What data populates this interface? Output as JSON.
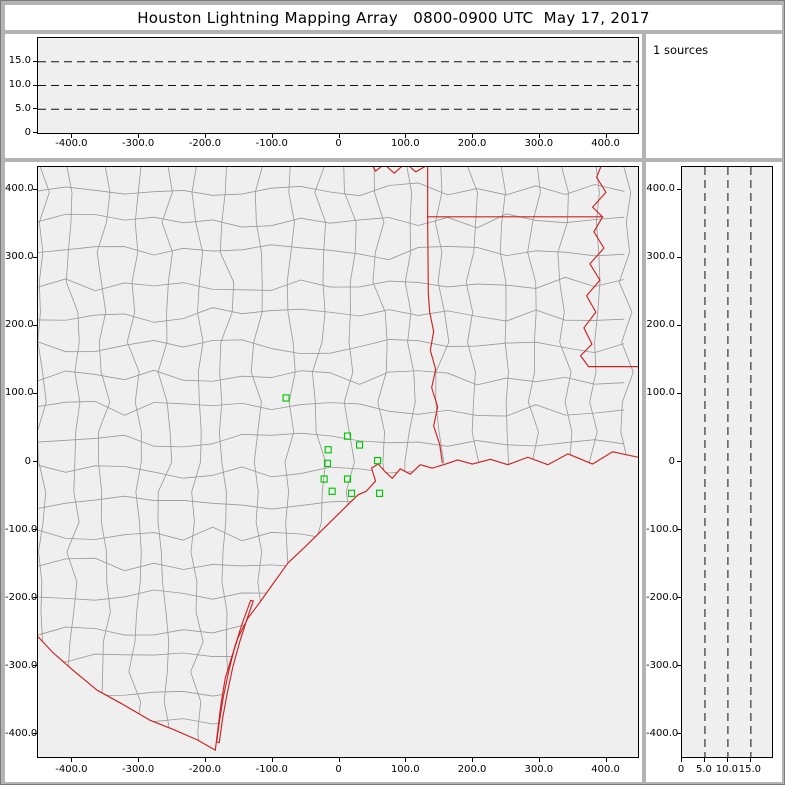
{
  "title": "Houston Lightning Mapping Array   0800-0900 UTC  May 17, 2017",
  "sources_label": "1 sources",
  "sources_count": 1,
  "colors": {
    "frame": "#b3b3b3",
    "plot_bg": "#efefef",
    "state_border": "#cc2222",
    "county_border": "#9a9a9a",
    "station": "#00c800",
    "dashed_grid": "#111111"
  },
  "chart_data": [
    {
      "id": "altitude-vs-east-west",
      "type": "scatter",
      "title": "",
      "xlim": [
        -451.5,
        447
      ],
      "ylim": [
        0,
        20
      ],
      "xtick_values": [
        -400,
        -300,
        -200,
        -100,
        0,
        100,
        200,
        300,
        400
      ],
      "xtick_labels": [
        "-400.0",
        "-300.0",
        "-200.0",
        "-100.0",
        "0",
        "100.0",
        "200.0",
        "300.0",
        "400.0"
      ],
      "ytick_values": [
        15,
        10,
        5,
        0
      ],
      "ytick_labels": [
        "15.0",
        "10.0",
        "5.0",
        "0"
      ],
      "gridlines": {
        "y": [
          5,
          10,
          15
        ],
        "style": "dashed"
      },
      "points": []
    },
    {
      "id": "plan-view-map",
      "type": "scatter",
      "title": "",
      "xlim": [
        -451.5,
        447
      ],
      "ylim": [
        -433,
        433
      ],
      "xtick_values": [
        -400,
        -300,
        -200,
        -100,
        0,
        100,
        200,
        300,
        400
      ],
      "xtick_labels": [
        "-400.0",
        "-300.0",
        "-200.0",
        "-100.0",
        "0",
        "100.0",
        "200.0",
        "300.0",
        "400.0"
      ],
      "ytick_values": [
        400,
        300,
        200,
        100,
        0,
        -100,
        -200,
        -300,
        -400
      ],
      "ytick_labels": [
        "400.0",
        "300.0",
        "200.0",
        "100.0",
        "0",
        "-100.0",
        "-200.0",
        "-300.0",
        "-400.0"
      ],
      "series": [
        {
          "name": "LMA stations",
          "marker": "green-open-square",
          "points": [
            [
              -80,
              94
            ],
            [
              12,
              38
            ],
            [
              -17,
              18
            ],
            [
              30,
              25
            ],
            [
              -18,
              -2
            ],
            [
              57,
              2
            ],
            [
              -23,
              -25
            ],
            [
              12,
              -25
            ],
            [
              -11,
              -43
            ],
            [
              18,
              -46
            ],
            [
              60,
              -46
            ]
          ]
        }
      ],
      "overlays": "county boundaries (gray), state borders and coastline (red)"
    },
    {
      "id": "altitude-vs-north-south",
      "type": "scatter",
      "title": "",
      "xlim": [
        0,
        19.6
      ],
      "ylim": [
        -433,
        433
      ],
      "xtick_values": [
        0,
        5,
        10,
        15
      ],
      "xtick_labels": [
        "0",
        "5.0",
        "10.0",
        "15.0"
      ],
      "ytick_values": [
        400,
        300,
        200,
        100,
        0,
        -100,
        -200,
        -300,
        -400
      ],
      "ytick_labels": [
        "400.0",
        "300.0",
        "200.0",
        "100.0",
        "0",
        "-100.0",
        "-200.0",
        "-300.0",
        "-400.0"
      ],
      "gridlines": {
        "x": [
          5,
          10,
          15
        ],
        "style": "dashed"
      },
      "points": []
    }
  ],
  "map_overlays": {
    "borders": {
      "coastline": [
        [
          447,
          7
        ],
        [
          409,
          15
        ],
        [
          379,
          -3
        ],
        [
          342,
          12
        ],
        [
          312,
          -4
        ],
        [
          282,
          7
        ],
        [
          252,
          -4
        ],
        [
          226,
          4
        ],
        [
          199,
          -3
        ],
        [
          177,
          3
        ],
        [
          159,
          -3
        ],
        [
          139,
          -9
        ],
        [
          121,
          -4
        ],
        [
          106,
          -18
        ],
        [
          91,
          -10
        ],
        [
          79,
          -24
        ],
        [
          69,
          -15
        ],
        [
          58,
          -3
        ],
        [
          48,
          -9
        ],
        [
          54,
          -28
        ],
        [
          40,
          -43
        ],
        [
          28,
          -48
        ],
        [
          7,
          -68
        ],
        [
          -23,
          -97
        ],
        [
          -53,
          -126
        ],
        [
          -77,
          -148
        ],
        [
          -99,
          -178
        ],
        [
          -120,
          -207
        ],
        [
          -137,
          -229
        ],
        [
          -152,
          -258
        ],
        [
          -162,
          -288
        ],
        [
          -171,
          -317
        ],
        [
          -177,
          -352
        ],
        [
          -182,
          -391
        ],
        [
          -186,
          -423
        ]
      ],
      "rio_grande": [
        [
          -186,
          -423
        ],
        [
          -213,
          -408
        ],
        [
          -248,
          -393
        ],
        [
          -284,
          -379
        ],
        [
          -326,
          -355
        ],
        [
          -363,
          -335
        ],
        [
          -400,
          -305
        ],
        [
          -430,
          -279
        ],
        [
          -451,
          -257
        ]
      ],
      "tx_la_border": [
        [
          154,
          -1
        ],
        [
          150,
          26
        ],
        [
          141,
          53
        ],
        [
          147,
          81
        ],
        [
          138,
          109
        ],
        [
          144,
          136
        ],
        [
          136,
          164
        ],
        [
          141,
          192
        ],
        [
          135,
          220
        ],
        [
          133,
          248
        ],
        [
          132,
          360
        ],
        [
          132,
          440
        ]
      ],
      "ar_la_33n": [
        [
          132,
          360
        ],
        [
          394,
          360
        ]
      ],
      "mississippi_river": [
        [
          394,
          440
        ],
        [
          385,
          418
        ],
        [
          399,
          396
        ],
        [
          379,
          374
        ],
        [
          394,
          360
        ],
        [
          381,
          338
        ],
        [
          396,
          314
        ],
        [
          375,
          291
        ],
        [
          390,
          267
        ],
        [
          370,
          244
        ],
        [
          384,
          220
        ],
        [
          366,
          197
        ],
        [
          378,
          173
        ],
        [
          361,
          156
        ],
        [
          373,
          140
        ]
      ],
      "la_ms_31n": [
        [
          373,
          140
        ],
        [
          447,
          140
        ]
      ],
      "red_river": [
        [
          132,
          436
        ],
        [
          114,
          426
        ],
        [
          99,
          439
        ],
        [
          82,
          424
        ],
        [
          67,
          437
        ],
        [
          54,
          427
        ],
        [
          45,
          443
        ]
      ],
      "padre_island": [
        [
          -133,
          -203
        ],
        [
          -145,
          -235
        ],
        [
          -157,
          -272
        ],
        [
          -166,
          -308
        ],
        [
          -174,
          -345
        ],
        [
          -180,
          -382
        ],
        [
          -184,
          -411
        ],
        [
          -180,
          -412
        ],
        [
          -175,
          -376
        ],
        [
          -168,
          -339
        ],
        [
          -160,
          -302
        ],
        [
          -150,
          -266
        ],
        [
          -138,
          -229
        ],
        [
          -129,
          -204
        ],
        [
          -133,
          -203
        ]
      ]
    }
  }
}
